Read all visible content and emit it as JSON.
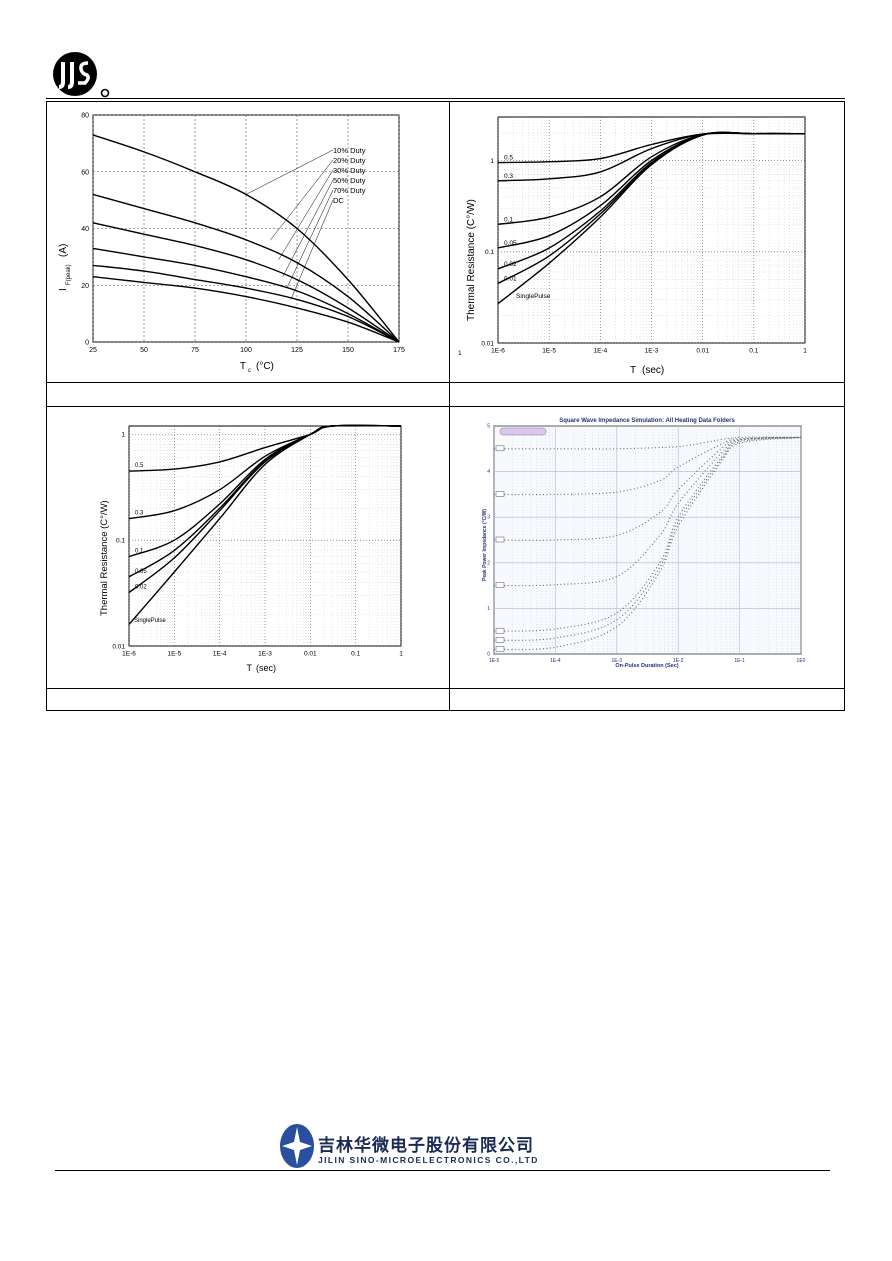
{
  "company": {
    "name_cn": "吉林华微电子股份有限公司",
    "name_en": "JILIN SINO-MICROELECTRONICS CO.,LTD"
  },
  "chart_data": [
    {
      "type": "line",
      "xlabel": "T",
      "xlabel_sub": "c",
      "xlabel_unit": "(°C)",
      "ylabel": "I",
      "ylabel_sub": "F(peak)",
      "ylabel_unit": "(A)",
      "xlim": [
        25,
        175
      ],
      "ylim": [
        0,
        80
      ],
      "xticks": [
        "25",
        "50",
        "75",
        "100",
        "125",
        "150",
        "175"
      ],
      "yticks": [
        "0",
        "20",
        "40",
        "60",
        "80"
      ],
      "grid": true,
      "legend": [
        "10% Duty",
        "20% Duty",
        "30% Duty",
        "50% Duty",
        "70% Duty",
        "DC"
      ],
      "series": [
        {
          "x": [
            25,
            50,
            75,
            100,
            125,
            150,
            175
          ],
          "y": [
            73,
            67,
            60,
            52,
            40,
            22,
            0
          ]
        },
        {
          "x": [
            25,
            50,
            75,
            100,
            125,
            150,
            175
          ],
          "y": [
            52,
            47,
            42,
            36,
            28,
            16,
            0
          ]
        },
        {
          "x": [
            25,
            50,
            75,
            100,
            125,
            150,
            175
          ],
          "y": [
            42,
            38,
            34,
            29,
            22,
            12,
            0
          ]
        },
        {
          "x": [
            25,
            50,
            75,
            100,
            125,
            150,
            175
          ],
          "y": [
            33,
            30,
            27,
            23,
            18,
            10,
            0
          ]
        },
        {
          "x": [
            25,
            50,
            75,
            100,
            125,
            150,
            175
          ],
          "y": [
            27,
            25,
            22,
            19,
            15,
            9,
            0
          ]
        },
        {
          "x": [
            25,
            50,
            75,
            100,
            125,
            150,
            175
          ],
          "y": [
            23,
            21,
            19,
            16,
            12,
            7,
            0
          ]
        }
      ]
    },
    {
      "type": "line",
      "xlabel": "T",
      "xlabel_unit": "(sec)",
      "ylabel": "Thermal Resistance (C°/W)",
      "xscale": "log",
      "yscale": "log",
      "xlim": [
        1e-06,
        1
      ],
      "ylim": [
        0.01,
        3
      ],
      "xticks": [
        "1E-6",
        "1E-5",
        "1E-4",
        "1E-3",
        "0.01",
        "0.1",
        "1"
      ],
      "yticks": [
        "0.01",
        "0.1",
        "1"
      ],
      "grid": true,
      "series_labels": [
        "0.5",
        "0.3",
        "0.1",
        "0.05",
        "0.02",
        "0.01",
        "SinglePulse"
      ],
      "series": [
        {
          "x": [
            1e-06,
            1e-05,
            0.0001,
            0.001,
            0.01,
            0.1,
            1
          ],
          "y": [
            0.95,
            0.97,
            1.05,
            1.5,
            1.95,
            1.97,
            1.97
          ]
        },
        {
          "x": [
            1e-06,
            1e-05,
            0.0001,
            0.001,
            0.01,
            0.1,
            1
          ],
          "y": [
            0.6,
            0.63,
            0.75,
            1.35,
            1.95,
            1.97,
            1.97
          ]
        },
        {
          "x": [
            1e-06,
            1e-05,
            0.0001,
            0.001,
            0.01,
            0.1,
            1
          ],
          "y": [
            0.2,
            0.24,
            0.4,
            1.1,
            1.93,
            1.97,
            1.97
          ]
        },
        {
          "x": [
            1e-06,
            1e-05,
            0.0001,
            0.001,
            0.01,
            0.1,
            1
          ],
          "y": [
            0.11,
            0.15,
            0.32,
            1.0,
            1.92,
            1.97,
            1.97
          ]
        },
        {
          "x": [
            1e-06,
            1e-05,
            0.0001,
            0.001,
            0.01,
            0.1,
            1
          ],
          "y": [
            0.065,
            0.11,
            0.28,
            0.95,
            1.92,
            1.97,
            1.97
          ]
        },
        {
          "x": [
            1e-06,
            1e-05,
            0.0001,
            0.001,
            0.01,
            0.1,
            1
          ],
          "y": [
            0.045,
            0.09,
            0.26,
            0.92,
            1.9,
            1.97,
            1.97
          ]
        },
        {
          "x": [
            1e-06,
            1e-05,
            0.0001,
            0.001,
            0.01,
            0.1,
            1
          ],
          "y": [
            0.027,
            0.075,
            0.24,
            0.9,
            1.9,
            1.97,
            1.97
          ]
        }
      ]
    },
    {
      "type": "line",
      "xlabel": "T",
      "xlabel_unit": "(sec)",
      "ylabel": "Thermal Resistance (C°/W)",
      "xscale": "log",
      "yscale": "log",
      "xlim": [
        1e-06,
        1
      ],
      "ylim": [
        0.01,
        1.2
      ],
      "xticks": [
        "1E-6",
        "1E-5",
        "1E-4",
        "1E-3",
        "0.01",
        "0.1",
        "1"
      ],
      "yticks": [
        "0.01",
        "0.1",
        "1"
      ],
      "grid": true,
      "series_labels": [
        "0.5",
        "0.3",
        "0.1",
        "0.05",
        "0.02",
        "SinglePulse"
      ],
      "series": [
        {
          "x": [
            1e-06,
            1e-05,
            0.0001,
            0.001,
            0.01,
            0.03,
            1
          ],
          "y": [
            0.45,
            0.47,
            0.55,
            0.75,
            1.0,
            1.2,
            1.2
          ]
        },
        {
          "x": [
            1e-06,
            1e-05,
            0.0001,
            0.001,
            0.01,
            0.03,
            1
          ],
          "y": [
            0.16,
            0.19,
            0.3,
            0.62,
            1.0,
            1.2,
            1.2
          ]
        },
        {
          "x": [
            1e-06,
            1e-05,
            0.0001,
            0.001,
            0.01,
            0.03,
            1
          ],
          "y": [
            0.07,
            0.1,
            0.22,
            0.58,
            1.0,
            1.2,
            1.2
          ]
        },
        {
          "x": [
            1e-06,
            1e-05,
            0.0001,
            0.001,
            0.01,
            0.03,
            1
          ],
          "y": [
            0.045,
            0.08,
            0.2,
            0.56,
            1.0,
            1.2,
            1.2
          ]
        },
        {
          "x": [
            1e-06,
            1e-05,
            0.0001,
            0.001,
            0.01,
            0.03,
            1
          ],
          "y": [
            0.032,
            0.068,
            0.19,
            0.55,
            1.0,
            1.2,
            1.2
          ]
        },
        {
          "x": [
            1e-06,
            1e-05,
            0.0001,
            0.001,
            0.01,
            0.03,
            1
          ],
          "y": [
            0.016,
            0.05,
            0.16,
            0.52,
            1.0,
            1.2,
            1.2
          ]
        }
      ]
    },
    {
      "type": "scatter",
      "title": "Square Wave Impedance Simulation: All Heating Data Folders",
      "xlabel": "On-Pulse Duration (Sec)",
      "ylabel": "Peak Power Impedance (°C/W)",
      "xscale": "log",
      "xlim": [
        1e-05,
        1
      ],
      "ylim": [
        0,
        5
      ],
      "xticks": [
        "1E-5",
        "1E-4",
        "1E-3",
        "1E-2",
        "1E-1",
        "1E0"
      ],
      "yticks": [
        "0",
        "1",
        "2",
        "3",
        "4",
        "5"
      ],
      "grid": true,
      "series": [
        {
          "x": [
            1e-05,
            0.0001,
            0.001,
            0.01,
            0.03,
            0.1,
            1
          ],
          "y": [
            4.5,
            4.5,
            4.5,
            4.55,
            4.65,
            4.75,
            4.75
          ]
        },
        {
          "x": [
            1e-05,
            0.0001,
            0.001,
            0.005,
            0.01,
            0.05,
            0.1,
            1
          ],
          "y": [
            3.5,
            3.5,
            3.55,
            3.8,
            4.1,
            4.6,
            4.72,
            4.75
          ]
        },
        {
          "x": [
            1e-05,
            0.0001,
            0.001,
            0.005,
            0.01,
            0.05,
            0.1,
            1
          ],
          "y": [
            2.5,
            2.5,
            2.6,
            3.1,
            3.6,
            4.5,
            4.7,
            4.75
          ]
        },
        {
          "x": [
            1e-05,
            0.0001,
            0.001,
            0.005,
            0.01,
            0.05,
            0.1,
            1
          ],
          "y": [
            1.5,
            1.52,
            1.7,
            2.6,
            3.3,
            4.4,
            4.7,
            4.75
          ]
        },
        {
          "x": [
            1e-05,
            0.0001,
            0.001,
            0.005,
            0.01,
            0.05,
            0.1,
            1
          ],
          "y": [
            0.5,
            0.55,
            0.9,
            2.0,
            3.0,
            4.3,
            4.68,
            4.75
          ]
        },
        {
          "x": [
            1e-05,
            0.0001,
            0.001,
            0.005,
            0.01,
            0.05,
            0.1,
            1
          ],
          "y": [
            0.3,
            0.35,
            0.75,
            1.9,
            2.9,
            4.25,
            4.65,
            4.75
          ]
        },
        {
          "x": [
            1e-05,
            0.0001,
            0.001,
            0.005,
            0.01,
            0.05,
            0.1,
            1
          ],
          "y": [
            0.1,
            0.15,
            0.6,
            1.8,
            2.8,
            4.2,
            4.62,
            4.75
          ]
        }
      ]
    }
  ]
}
